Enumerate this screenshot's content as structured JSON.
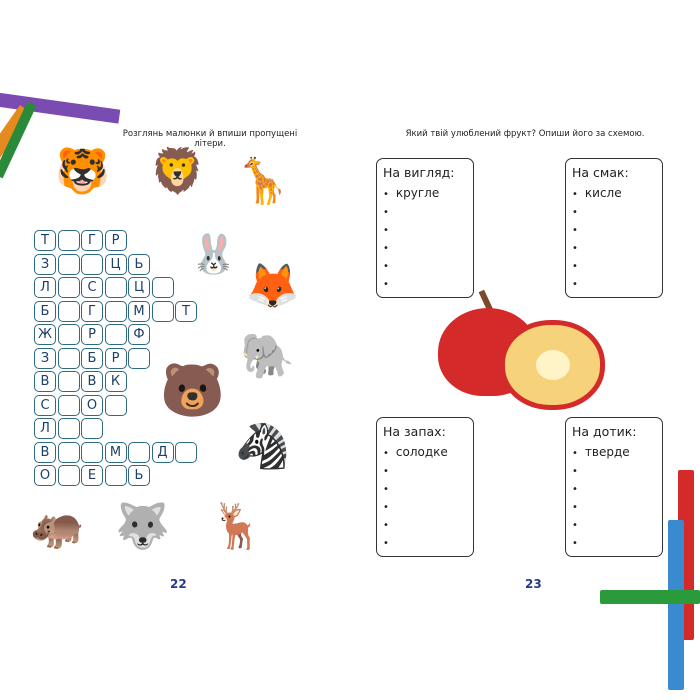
{
  "left_page": {
    "instruction": "Розглянь малюнки й впиши пропущені літери.",
    "grid": [
      [
        "Т",
        "",
        "Г",
        "Р"
      ],
      [
        "З",
        "",
        "",
        "Ц",
        "Ь"
      ],
      [
        "Л",
        "",
        "С",
        "",
        "Ц",
        ""
      ],
      [
        "Б",
        "",
        "Г",
        "",
        "М",
        "",
        "Т"
      ],
      [
        "Ж",
        "",
        "Р",
        "",
        "Ф"
      ],
      [
        "З",
        "",
        "Б",
        "Р",
        ""
      ],
      [
        "В",
        "",
        "В",
        "К"
      ],
      [
        "С",
        "",
        "О",
        ""
      ],
      [
        "Л",
        "",
        ""
      ],
      [
        "В",
        "",
        "",
        "М",
        "",
        "Д",
        ""
      ],
      [
        "О",
        "",
        "Е",
        "",
        "Ь"
      ]
    ],
    "page_number": "22"
  },
  "right_page": {
    "instruction": "Який твій улюблений фрукт? Опиши його за схемою.",
    "boxes": [
      {
        "title": "На вигляд:",
        "items": [
          "кругле",
          "",
          "",
          "",
          "",
          ""
        ]
      },
      {
        "title": "На смак:",
        "items": [
          "кисле",
          "",
          "",
          "",
          "",
          ""
        ]
      },
      {
        "title": "На запах:",
        "items": [
          "солодке",
          "",
          "",
          "",
          "",
          ""
        ]
      },
      {
        "title": "На дотик:",
        "items": [
          "тверде",
          "",
          "",
          "",
          "",
          ""
        ]
      }
    ],
    "page_number": "23"
  },
  "colors": {
    "cell_border": "#2f6a84",
    "page_number": "#2a3a8a",
    "apple": "#d42a2a"
  }
}
